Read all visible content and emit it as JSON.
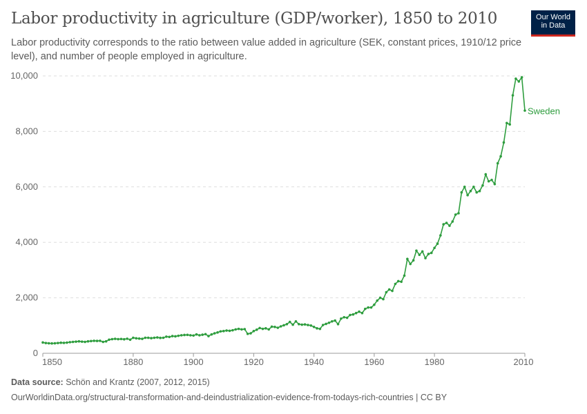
{
  "header": {
    "title": "Labor productivity in agriculture (GDP/worker), 1850 to 2010",
    "subtitle": "Labor productivity corresponds to the ratio between value added in agriculture (SEK, constant prices, 1910/12 price level), and number of people employed in agriculture.",
    "logo_line1": "Our World",
    "logo_line2": "in Data"
  },
  "footer": {
    "source_label": "Data source:",
    "source_text": "Schön and Krantz (2007, 2012, 2015)",
    "url_line": "OurWorldinData.org/structural-transformation-and-deindustrialization-evidence-from-todays-rich-countries | CC BY"
  },
  "colors": {
    "series": "#2e9d3e",
    "logo_bg": "#002147",
    "logo_accent": "#ce261e"
  },
  "chart_data": {
    "type": "line",
    "title": "Labor productivity in agriculture (GDP/worker), 1850 to 2010",
    "xlim": [
      1850,
      2010
    ],
    "ylim": [
      0,
      10000
    ],
    "grid": "horizontal dashed",
    "x_ticks": [
      1850,
      1880,
      1900,
      1920,
      1940,
      1960,
      1980,
      2010
    ],
    "x_tick_labels": [
      "1850",
      "1880",
      "1900",
      "1920",
      "1940",
      "1960",
      "1980",
      "2010"
    ],
    "y_ticks": [
      0,
      2000,
      4000,
      6000,
      8000,
      10000
    ],
    "y_tick_labels": [
      "0",
      "2,000",
      "4,000",
      "6,000",
      "8,000",
      "10,000"
    ],
    "series": [
      {
        "name": "Sweden",
        "x": [
          1850,
          1851,
          1852,
          1853,
          1854,
          1855,
          1856,
          1857,
          1858,
          1859,
          1860,
          1861,
          1862,
          1863,
          1864,
          1865,
          1866,
          1867,
          1868,
          1869,
          1870,
          1871,
          1872,
          1873,
          1874,
          1875,
          1876,
          1877,
          1878,
          1879,
          1880,
          1881,
          1882,
          1883,
          1884,
          1885,
          1886,
          1887,
          1888,
          1889,
          1890,
          1891,
          1892,
          1893,
          1894,
          1895,
          1896,
          1897,
          1898,
          1899,
          1900,
          1901,
          1902,
          1903,
          1904,
          1905,
          1906,
          1907,
          1908,
          1909,
          1910,
          1911,
          1912,
          1913,
          1914,
          1915,
          1916,
          1917,
          1918,
          1919,
          1920,
          1921,
          1922,
          1923,
          1924,
          1925,
          1926,
          1927,
          1928,
          1929,
          1930,
          1931,
          1932,
          1933,
          1934,
          1935,
          1936,
          1937,
          1938,
          1939,
          1940,
          1941,
          1942,
          1943,
          1944,
          1945,
          1946,
          1947,
          1948,
          1949,
          1950,
          1951,
          1952,
          1953,
          1954,
          1955,
          1956,
          1957,
          1958,
          1959,
          1960,
          1961,
          1962,
          1963,
          1964,
          1965,
          1966,
          1967,
          1968,
          1969,
          1970,
          1971,
          1972,
          1973,
          1974,
          1975,
          1976,
          1977,
          1978,
          1979,
          1980,
          1981,
          1982,
          1983,
          1984,
          1985,
          1986,
          1987,
          1988,
          1989,
          1990,
          1991,
          1992,
          1993,
          1994,
          1995,
          1996,
          1997,
          1998,
          1999,
          2000,
          2001,
          2002,
          2003,
          2004,
          2005,
          2006,
          2007,
          2008,
          2009,
          2010
        ],
        "values": [
          390,
          370,
          360,
          355,
          360,
          370,
          380,
          375,
          385,
          400,
          410,
          420,
          430,
          420,
          410,
          430,
          440,
          450,
          445,
          450,
          410,
          430,
          490,
          510,
          520,
          510,
          515,
          505,
          525,
          490,
          560,
          540,
          530,
          520,
          560,
          560,
          545,
          560,
          570,
          555,
          560,
          600,
          590,
          620,
          610,
          630,
          650,
          660,
          665,
          650,
          640,
          680,
          650,
          670,
          690,
          620,
          680,
          720,
          750,
          790,
          800,
          820,
          810,
          830,
          860,
          880,
          860,
          870,
          700,
          720,
          800,
          850,
          910,
          880,
          900,
          860,
          960,
          950,
          920,
          970,
          1010,
          1050,
          1130,
          1030,
          1150,
          1050,
          1030,
          1040,
          1020,
          1000,
          950,
          900,
          880,
          1020,
          1060,
          1100,
          1150,
          1180,
          1050,
          1250,
          1300,
          1280,
          1380,
          1400,
          1450,
          1500,
          1450,
          1600,
          1650,
          1650,
          1750,
          1900,
          2000,
          1950,
          2200,
          2300,
          2250,
          2500,
          2600,
          2580,
          2800,
          3400,
          3220,
          3350,
          3700,
          3550,
          3670,
          3430,
          3580,
          3620,
          3800,
          3950,
          4250,
          4650,
          4700,
          4600,
          4750,
          5000,
          5050,
          5800,
          6000,
          5700,
          5850,
          6000,
          5800,
          5850,
          6050,
          6450,
          6200,
          6250,
          6100,
          6850,
          7100,
          7600,
          8300,
          8250,
          9300,
          9900,
          9800,
          9950,
          8750
        ]
      }
    ]
  }
}
